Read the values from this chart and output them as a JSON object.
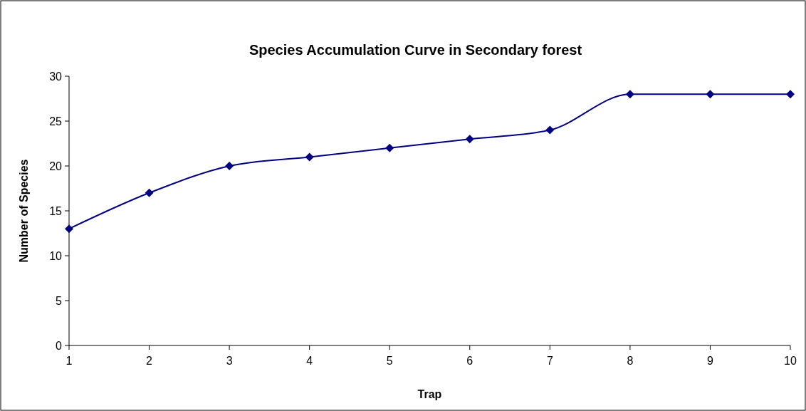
{
  "chart_data": {
    "type": "line",
    "title": "Species Accumulation Curve in Secondary forest",
    "xlabel": "Trap",
    "ylabel": "Number of Species",
    "x": [
      1,
      2,
      3,
      4,
      5,
      6,
      7,
      8,
      9,
      10
    ],
    "series": [
      {
        "color": "#000080",
        "values": [
          13,
          17,
          20,
          21,
          22,
          23,
          24,
          28,
          28,
          28
        ]
      }
    ],
    "xlim": [
      1,
      10
    ],
    "xticks": [
      1,
      2,
      3,
      4,
      5,
      6,
      7,
      8,
      9,
      10
    ],
    "ylim": [
      0,
      30
    ],
    "yticks": [
      0,
      5,
      10,
      15,
      20,
      25,
      30
    ],
    "marker": "diamond",
    "line_style": "solid"
  }
}
